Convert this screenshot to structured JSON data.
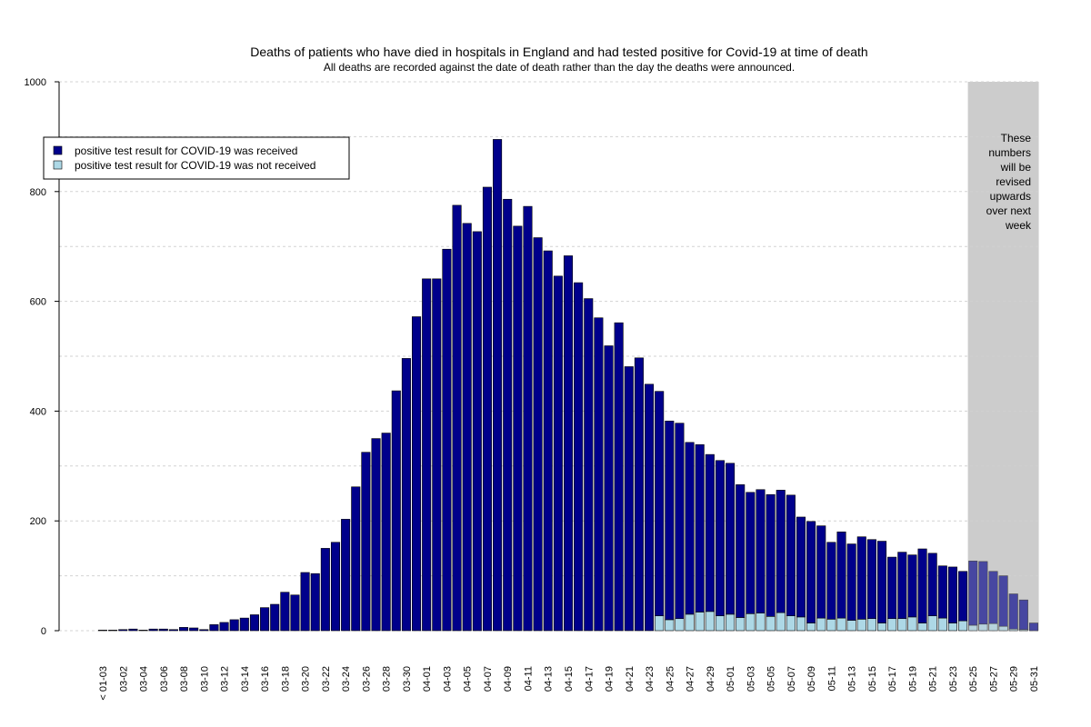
{
  "chart_data": {
    "type": "stacked_bar",
    "title": "Deaths of patients who have died in hospitals in England and had tested positive for Covid-19 at time of death",
    "subtitle": "All deaths are recorded against the date of death rather than the day the deaths were announced.",
    "categories": [
      "< 01-03",
      null,
      "03-02",
      null,
      "03-04",
      null,
      "03-06",
      null,
      "03-08",
      null,
      "03-10",
      null,
      "03-12",
      null,
      "03-14",
      null,
      "03-16",
      null,
      "03-18",
      null,
      "03-20",
      null,
      "03-22",
      null,
      "03-24",
      null,
      "03-26",
      null,
      "03-28",
      null,
      "03-30",
      null,
      "04-01",
      null,
      "04-03",
      null,
      "04-05",
      null,
      "04-07",
      null,
      "04-09",
      null,
      "04-11",
      null,
      "04-13",
      null,
      "04-15",
      null,
      "04-17",
      null,
      "04-19",
      null,
      "04-21",
      null,
      "04-23",
      null,
      "04-25",
      null,
      "04-27",
      null,
      "04-29",
      null,
      "05-01",
      null,
      "05-03",
      null,
      "05-05",
      null,
      "05-07",
      null,
      "05-09",
      null,
      "05-11",
      null,
      "05-13",
      null,
      "05-15",
      null,
      "05-17",
      null,
      "05-19",
      null,
      "05-21",
      null,
      "05-23",
      null,
      "05-25",
      null,
      "05-27",
      null,
      "05-29",
      null,
      "05-31"
    ],
    "series": [
      {
        "name": "positive test result for COVID-19 was received",
        "color": "#00008b",
        "values": [
          1,
          1,
          2,
          3,
          1,
          3,
          3,
          2,
          6,
          5,
          2,
          11,
          15,
          20,
          23,
          29,
          42,
          48,
          70,
          65,
          106,
          104,
          150,
          161,
          203,
          262,
          325,
          350,
          360,
          437,
          496,
          572,
          641,
          641,
          695,
          775,
          742,
          727,
          808,
          895,
          786,
          737,
          773,
          716,
          692,
          646,
          683,
          634,
          605,
          570,
          519,
          561,
          481,
          497,
          449,
          409,
          362,
          356,
          313,
          305,
          286,
          283,
          275,
          242,
          221,
          225,
          222,
          223,
          220,
          182,
          185,
          168,
          140,
          157,
          139,
          150,
          144,
          149,
          112,
          121,
          113,
          135,
          114,
          95,
          102,
          90,
          117,
          114,
          95,
          92,
          64,
          54,
          14
        ]
      },
      {
        "name": "positive test result for COVID-19 was not received",
        "color": "#add8e6",
        "values": [
          0,
          0,
          0,
          0,
          0,
          0,
          0,
          0,
          0,
          0,
          0,
          0,
          0,
          0,
          0,
          0,
          0,
          0,
          0,
          0,
          0,
          0,
          0,
          0,
          0,
          0,
          0,
          0,
          0,
          0,
          0,
          0,
          0,
          0,
          0,
          0,
          0,
          0,
          0,
          0,
          0,
          0,
          0,
          0,
          0,
          0,
          0,
          0,
          0,
          0,
          0,
          0,
          0,
          0,
          0,
          27,
          20,
          22,
          30,
          34,
          35,
          27,
          30,
          24,
          31,
          32,
          26,
          33,
          27,
          25,
          14,
          23,
          21,
          23,
          19,
          21,
          22,
          14,
          22,
          22,
          25,
          14,
          27,
          23,
          14,
          18,
          10,
          12,
          13,
          8,
          3,
          2,
          0
        ]
      }
    ],
    "ylim": [
      0,
      1000
    ],
    "yticks": [
      0,
      200,
      400,
      600,
      800,
      1000
    ],
    "grid": true,
    "legend": "top-left",
    "annotation": {
      "lines": [
        "These",
        "numbers",
        "will be",
        "revised",
        "upwards",
        "over next",
        "week"
      ],
      "from": "05-25",
      "to": "05-31",
      "color": "#cccccc"
    }
  }
}
